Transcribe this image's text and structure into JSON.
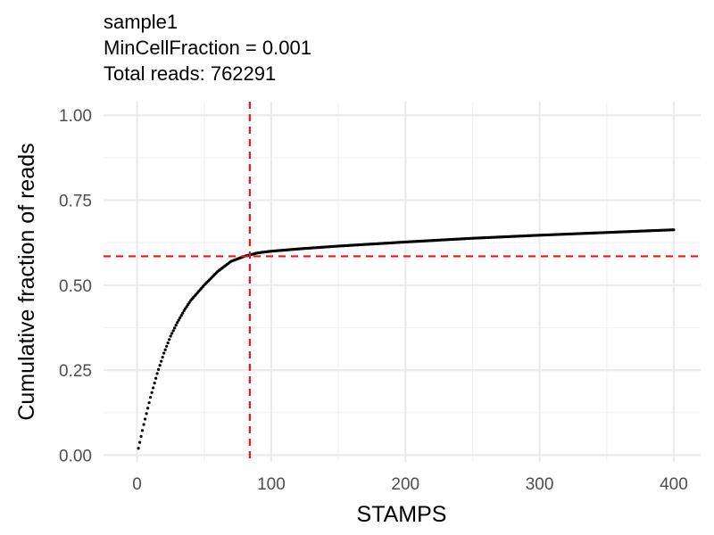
{
  "chart_data": {
    "type": "scatter",
    "title_lines": [
      "sample1",
      "MinCellFraction = 0.001",
      "Total reads: 762291"
    ],
    "xlabel": "STAMPS",
    "ylabel": "Cumulative fraction of reads",
    "xlim": [
      -25,
      420
    ],
    "ylim": [
      -0.02,
      1.04
    ],
    "x_ticks": [
      0,
      100,
      200,
      300,
      400
    ],
    "x_tick_labels": [
      "0",
      "100",
      "200",
      "300",
      "400"
    ],
    "y_ticks": [
      0,
      0.25,
      0.5,
      0.75,
      1.0
    ],
    "y_tick_labels": [
      "0.00",
      "0.25",
      "0.50",
      "0.75",
      "1.00"
    ],
    "x_minor": [
      50,
      150,
      250,
      350
    ],
    "y_minor": [
      0.125,
      0.375,
      0.625,
      0.875
    ],
    "grid": true,
    "series": [
      {
        "color": "#000000",
        "x": [
          1,
          5,
          10,
          15,
          20,
          25,
          30,
          35,
          40,
          50,
          60,
          70,
          80,
          90,
          100,
          125,
          150,
          200,
          250,
          300,
          350,
          400
        ],
        "y": [
          0.02,
          0.09,
          0.17,
          0.24,
          0.3,
          0.35,
          0.39,
          0.425,
          0.455,
          0.5,
          0.54,
          0.57,
          0.585,
          0.595,
          0.6,
          0.608,
          0.615,
          0.627,
          0.638,
          0.647,
          0.655,
          0.663
        ]
      }
    ],
    "reference_lines": {
      "color": "#e41a1c",
      "vertical_x": 84,
      "horizontal_y": 0.585
    }
  }
}
